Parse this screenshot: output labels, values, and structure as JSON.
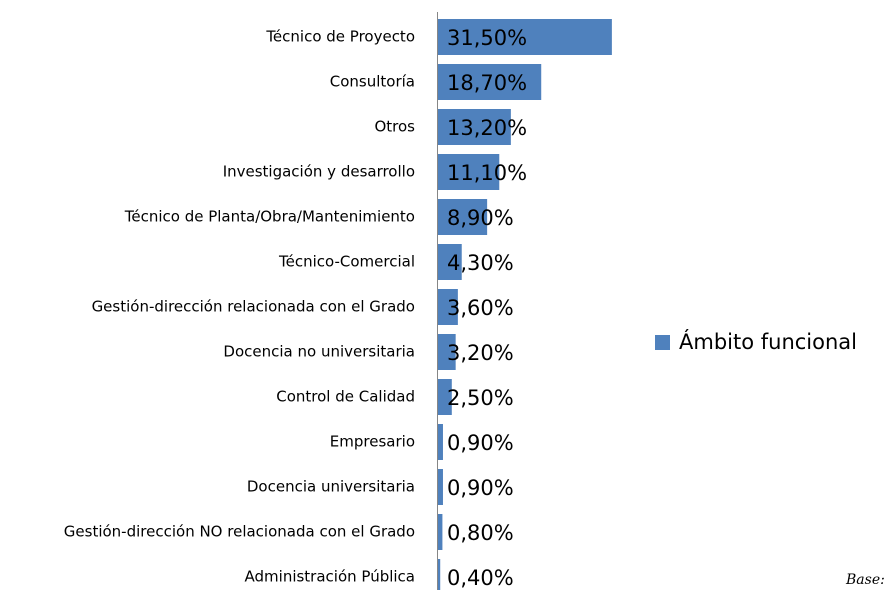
{
  "chart_data": {
    "type": "bar",
    "orientation": "horizontal",
    "categories": [
      "Técnico de Proyecto",
      "Consultoría",
      "Otros",
      "Investigación y desarrollo",
      "Técnico de Planta/Obra/Mantenimiento",
      "Técnico-Comercial",
      "Gestión-dirección relacionada con el Grado",
      "Docencia no universitaria",
      "Control de Calidad",
      "Empresario",
      "Docencia universitaria",
      "Gestión-dirección NO relacionada con el Grado",
      "Administración Pública"
    ],
    "series": [
      {
        "name": "Ámbito funcional",
        "color": "#4f81bd",
        "values": [
          31.5,
          18.7,
          13.2,
          11.1,
          8.9,
          4.3,
          3.6,
          3.2,
          2.5,
          0.9,
          0.9,
          0.8,
          0.4
        ],
        "value_labels": [
          "31,50%",
          "18,70%",
          "13,20%",
          "11,10%",
          "8,90%",
          "4,30%",
          "3,60%",
          "3,20%",
          "2,50%",
          "0,90%",
          "0,90%",
          "0,80%",
          "0,40%"
        ]
      }
    ],
    "legend": "right",
    "footnote": "Base:"
  }
}
